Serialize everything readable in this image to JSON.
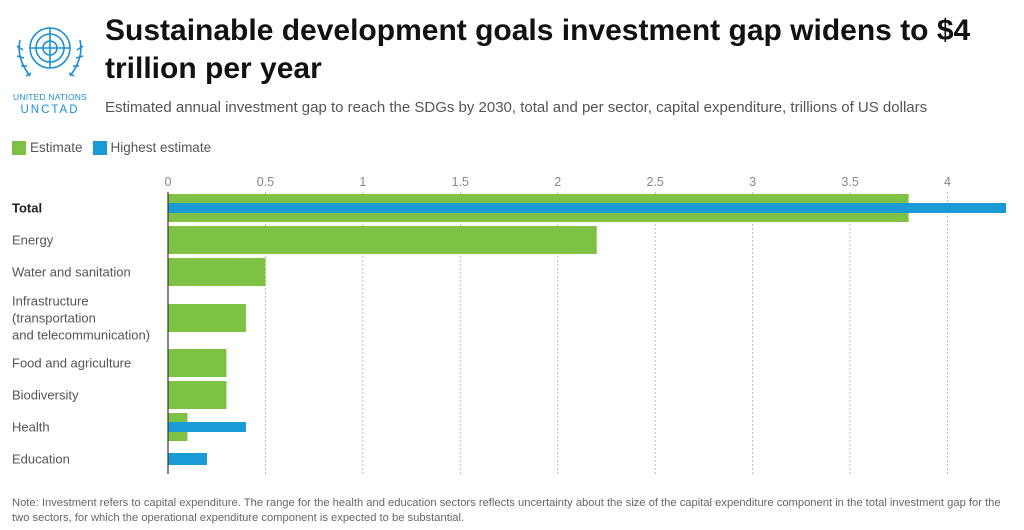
{
  "logo": {
    "org": "UNITED NATIONS",
    "name": "UNCTAD"
  },
  "header": {
    "title": "Sustainable development goals investment gap widens to $4 trillion per year",
    "subtitle": "Estimated annual investment gap to reach the SDGs by 2030, total and per sector, capital expenditure, trillions of US dollars"
  },
  "legend": {
    "position": "top-left"
  },
  "colors": {
    "estimate": "#7dc242",
    "highest": "#1a9ad6"
  },
  "chart_data": {
    "type": "bar",
    "orientation": "horizontal",
    "categories": [
      "Total",
      "Energy",
      "Water and sanitation",
      "Infrastructure (transportation and telecommunication)",
      "Food and agriculture",
      "Biodiversity",
      "Health",
      "Education"
    ],
    "category_lines": [
      [
        "Total"
      ],
      [
        "Energy"
      ],
      [
        "Water and sanitation"
      ],
      [
        "Infrastructure",
        "(transportation",
        "and telecommunication)"
      ],
      [
        "Food and agriculture"
      ],
      [
        "Biodiversity"
      ],
      [
        "Health"
      ],
      [
        "Education"
      ]
    ],
    "series": [
      {
        "name": "Estimate",
        "values": [
          3.8,
          2.2,
          0.5,
          0.4,
          0.3,
          0.3,
          0.1,
          null
        ]
      },
      {
        "name": "Highest estimate",
        "values": [
          4.3,
          null,
          null,
          null,
          null,
          null,
          0.4,
          0.2
        ]
      }
    ],
    "xticks": [
      0,
      0.5,
      1,
      1.5,
      2,
      2.5,
      3,
      3.5,
      4
    ],
    "xtick_labels": [
      "0",
      "0.5",
      "1",
      "1.5",
      "2",
      "2.5",
      "3",
      "3.5",
      "4"
    ],
    "xlim": [
      0,
      4.3
    ],
    "grid": true,
    "xlabel": "",
    "ylabel": ""
  },
  "note": "Note: Investment refers to capital expenditure. The range for the health and education sectors reflects uncertainty about the size of the capital expenditure component in the total investment gap for the two sectors, for which the operational expenditure component is expected to be substantial."
}
